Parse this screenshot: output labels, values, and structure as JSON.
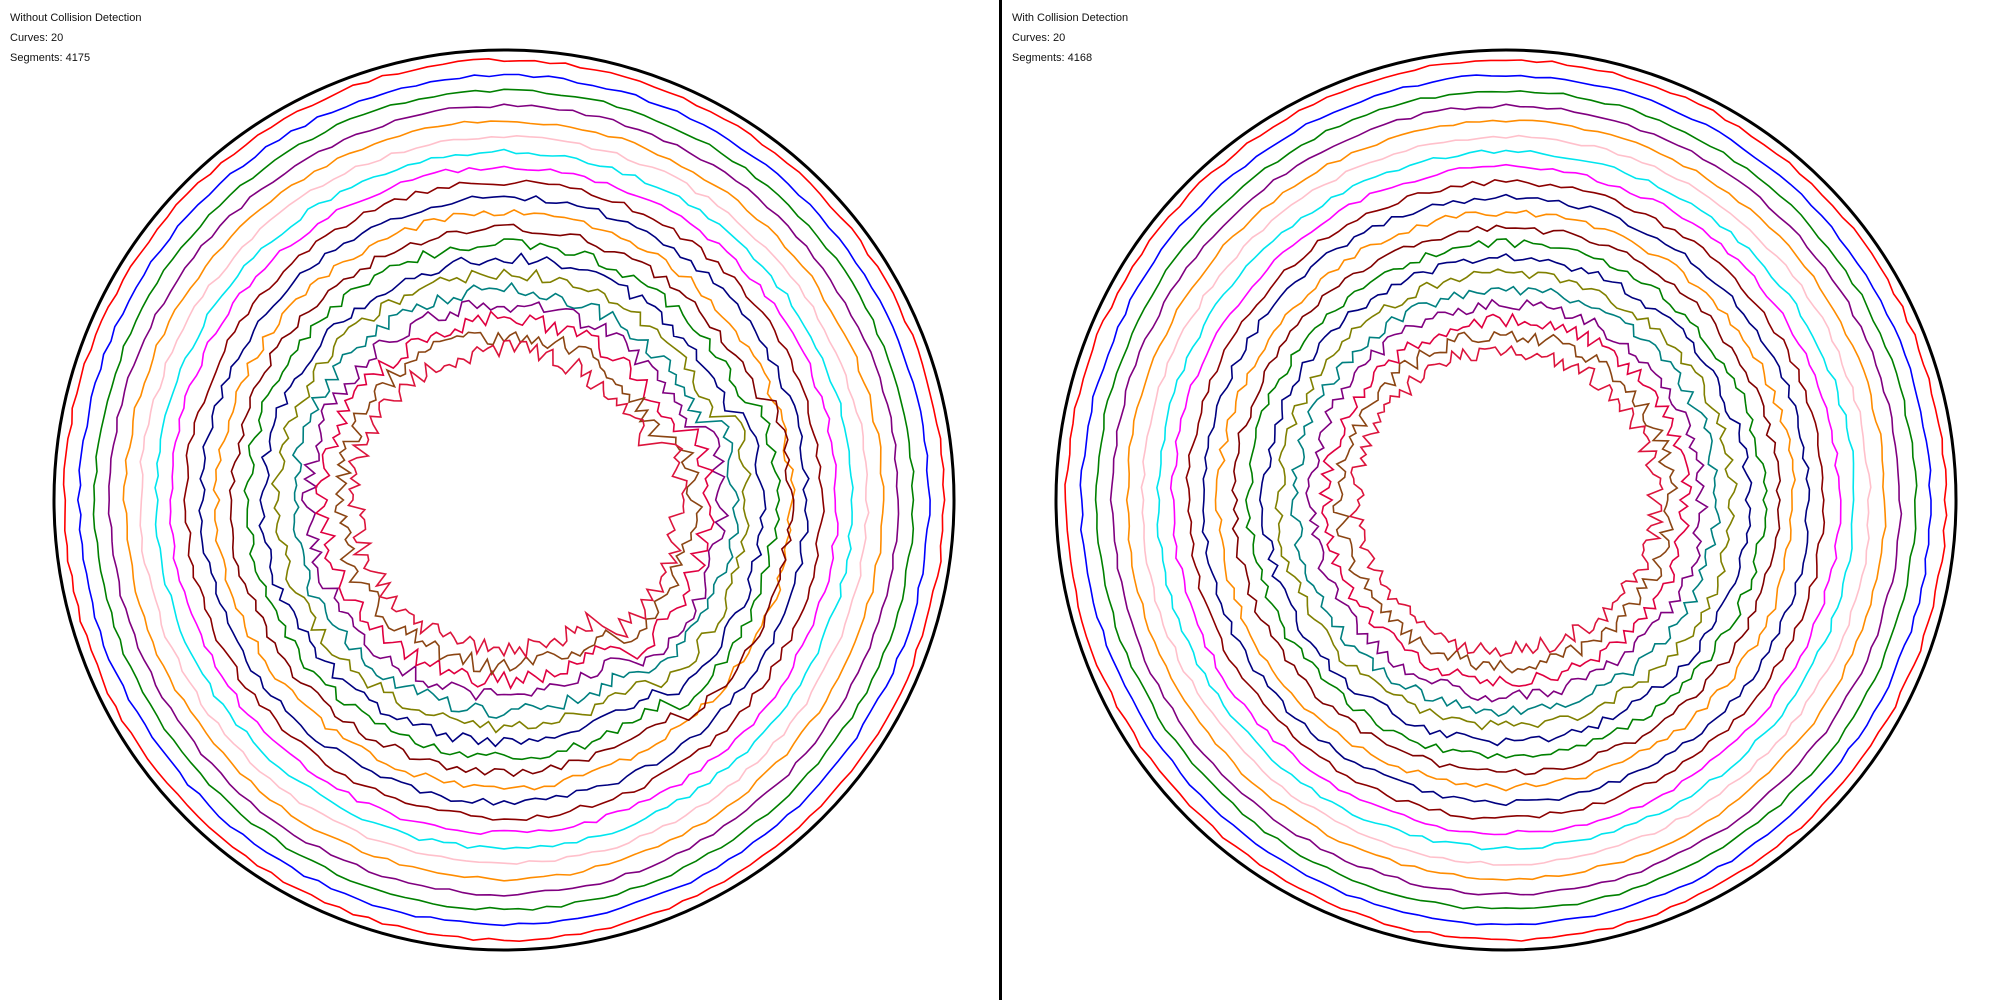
{
  "panels": [
    {
      "title": "Without Collision Detection",
      "curves_label": "Curves: 20",
      "segments_label": "Segments: 4175",
      "jaggedness_inner": 9,
      "collision": false
    },
    {
      "title": "With Collision Detection",
      "curves_label": "Curves: 20",
      "segments_label": "Segments: 4168",
      "jaggedness_inner": 7,
      "collision": true
    }
  ],
  "colors": {
    "boundary": "#000000",
    "divider": "#000000",
    "curves": [
      "#ff0000",
      "#0000ff",
      "#008000",
      "#800080",
      "#ff8c00",
      "#ffc0cb",
      "#00e5ee",
      "#ff00ff",
      "#8b0000",
      "#000080",
      "#ff8c00",
      "#800000",
      "#008000",
      "#000080",
      "#808000",
      "#008080",
      "#800080",
      "#e00040",
      "#8b4513",
      "#dc143c"
    ]
  }
}
